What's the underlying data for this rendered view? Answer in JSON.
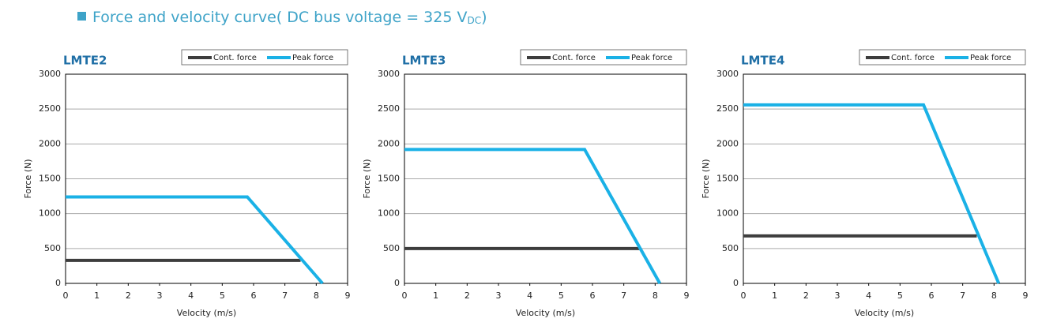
{
  "header": {
    "title": "Force and velocity curve( DC bus voltage = 325 V",
    "title_subscript": "DC",
    "title_end": ")"
  },
  "chart_data": [
    {
      "type": "line",
      "title": "LMTE2",
      "xlabel": "Velocity (m/s)",
      "ylabel": "Force (N)",
      "xlim": [
        0,
        9
      ],
      "ylim": [
        0,
        3000
      ],
      "xticks": [
        0,
        1,
        2,
        3,
        4,
        5,
        6,
        7,
        8,
        9
      ],
      "yticks": [
        0,
        500,
        1000,
        1500,
        2000,
        2500,
        3000
      ],
      "grid": true,
      "legend": "upper right",
      "series": [
        {
          "name": "Cont. force",
          "color": "#3d3d3d",
          "x": [
            0,
            7.5
          ],
          "values": [
            330,
            330
          ]
        },
        {
          "name": "Peak force",
          "color": "#1ab1e6",
          "x": [
            0,
            5.8,
            8.2
          ],
          "values": [
            1240,
            1240,
            0
          ]
        }
      ]
    },
    {
      "type": "line",
      "title": "LMTE3",
      "xlabel": "Velocity (m/s)",
      "ylabel": "Force (N)",
      "xlim": [
        0,
        9
      ],
      "ylim": [
        0,
        3000
      ],
      "xticks": [
        0,
        1,
        2,
        3,
        4,
        5,
        6,
        7,
        8,
        9
      ],
      "yticks": [
        0,
        500,
        1000,
        1500,
        2000,
        2500,
        3000
      ],
      "grid": true,
      "legend": "upper right",
      "series": [
        {
          "name": "Cont. force",
          "color": "#3d3d3d",
          "x": [
            0,
            7.5
          ],
          "values": [
            500,
            500
          ]
        },
        {
          "name": "Peak force",
          "color": "#1ab1e6",
          "x": [
            0,
            5.75,
            8.15
          ],
          "values": [
            1920,
            1920,
            0
          ]
        }
      ]
    },
    {
      "type": "line",
      "title": "LMTE4",
      "xlabel": "Velocity (m/s)",
      "ylabel": "Force (N)",
      "xlim": [
        0,
        9
      ],
      "ylim": [
        0,
        3000
      ],
      "xticks": [
        0,
        1,
        2,
        3,
        4,
        5,
        6,
        7,
        8,
        9
      ],
      "yticks": [
        0,
        500,
        1000,
        1500,
        2000,
        2500,
        3000
      ],
      "grid": true,
      "legend": "upper right",
      "series": [
        {
          "name": "Cont. force",
          "color": "#3d3d3d",
          "x": [
            0,
            7.45
          ],
          "values": [
            680,
            680
          ]
        },
        {
          "name": "Peak force",
          "color": "#1ab1e6",
          "x": [
            0,
            5.75,
            8.15
          ],
          "values": [
            2560,
            2560,
            0
          ]
        }
      ]
    }
  ]
}
